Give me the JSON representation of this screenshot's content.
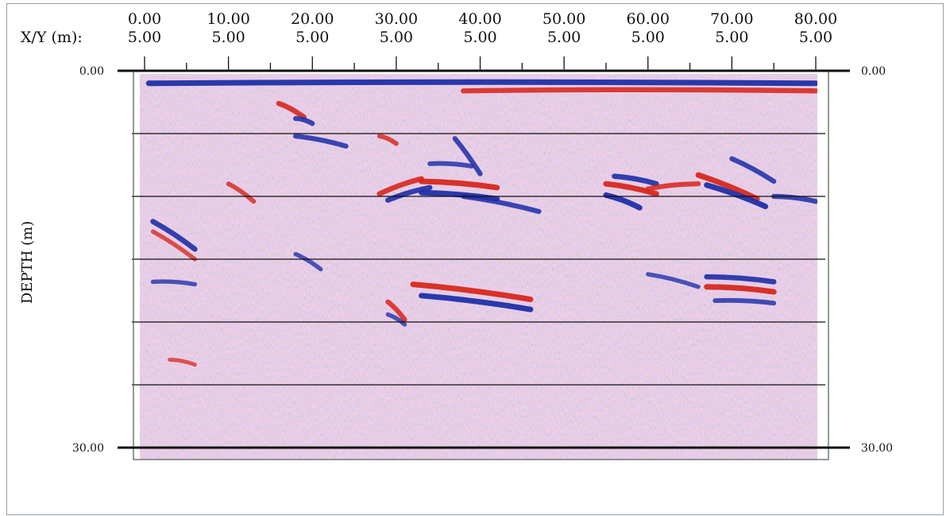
{
  "chart_data": {
    "type": "heatmap",
    "title": "",
    "xlabel": "X/Y (m):",
    "ylabel": "DEPTH (m)",
    "x_ticks": [
      {
        "top": "0.00",
        "bottom": "5.00"
      },
      {
        "top": "10.00",
        "bottom": "5.00"
      },
      {
        "top": "20.00",
        "bottom": "5.00"
      },
      {
        "top": "30.00",
        "bottom": "5.00"
      },
      {
        "top": "40.00",
        "bottom": "5.00"
      },
      {
        "top": "50.00",
        "bottom": "5.00"
      },
      {
        "top": "60.00",
        "bottom": "5.00"
      },
      {
        "top": "70.00",
        "bottom": "5.00"
      },
      {
        "top": "80.00",
        "bottom": "5.00"
      }
    ],
    "xlim": [
      0,
      80
    ],
    "ylim": [
      0,
      30
    ],
    "y_tick_labels": [
      "0.00",
      "30.00"
    ],
    "grid_depths": [
      5,
      10,
      15,
      20,
      25
    ],
    "colors": {
      "positive": "#d7281e",
      "negative": "#1f2fa8",
      "line": "#111111",
      "frame": "#555555"
    },
    "reflectors": [
      {
        "x1": 0.5,
        "d1": 1.0,
        "x2": 80,
        "d2": 1.0,
        "polarity": "negative",
        "strength": 1.0
      },
      {
        "x1": 38,
        "d1": 1.6,
        "x2": 80,
        "d2": 1.6,
        "polarity": "positive",
        "strength": 0.85
      },
      {
        "x1": 16,
        "d1": 2.6,
        "x2": 19,
        "d2": 3.7,
        "polarity": "positive",
        "strength": 0.9
      },
      {
        "x1": 18,
        "d1": 3.8,
        "x2": 20,
        "d2": 4.2,
        "polarity": "negative",
        "strength": 0.8
      },
      {
        "x1": 18,
        "d1": 5.2,
        "x2": 24,
        "d2": 6.0,
        "polarity": "negative",
        "strength": 0.8
      },
      {
        "x1": 28,
        "d1": 9.8,
        "x2": 33,
        "d2": 8.6,
        "polarity": "positive",
        "strength": 0.9
      },
      {
        "x1": 29,
        "d1": 10.3,
        "x2": 34,
        "d2": 9.3,
        "polarity": "negative",
        "strength": 0.9
      },
      {
        "x1": 33,
        "d1": 8.8,
        "x2": 42,
        "d2": 9.3,
        "polarity": "positive",
        "strength": 1.0
      },
      {
        "x1": 33,
        "d1": 9.7,
        "x2": 42,
        "d2": 10.2,
        "polarity": "negative",
        "strength": 1.0
      },
      {
        "x1": 34,
        "d1": 7.4,
        "x2": 39,
        "d2": 7.6,
        "polarity": "negative",
        "strength": 0.7
      },
      {
        "x1": 38,
        "d1": 10.0,
        "x2": 47,
        "d2": 11.2,
        "polarity": "negative",
        "strength": 0.8
      },
      {
        "x1": 37,
        "d1": 5.4,
        "x2": 40,
        "d2": 8.2,
        "polarity": "negative",
        "strength": 0.8
      },
      {
        "x1": 28,
        "d1": 5.2,
        "x2": 30,
        "d2": 5.8,
        "polarity": "positive",
        "strength": 0.7
      },
      {
        "x1": 55,
        "d1": 9.0,
        "x2": 61,
        "d2": 9.8,
        "polarity": "positive",
        "strength": 1.0
      },
      {
        "x1": 55,
        "d1": 9.9,
        "x2": 59,
        "d2": 10.9,
        "polarity": "negative",
        "strength": 1.0
      },
      {
        "x1": 56,
        "d1": 8.4,
        "x2": 61,
        "d2": 9.0,
        "polarity": "negative",
        "strength": 0.9
      },
      {
        "x1": 60,
        "d1": 9.4,
        "x2": 66,
        "d2": 9.0,
        "polarity": "positive",
        "strength": 0.8
      },
      {
        "x1": 66,
        "d1": 8.3,
        "x2": 73,
        "d2": 10.2,
        "polarity": "positive",
        "strength": 1.0
      },
      {
        "x1": 67,
        "d1": 9.1,
        "x2": 74,
        "d2": 10.8,
        "polarity": "negative",
        "strength": 1.0
      },
      {
        "x1": 70,
        "d1": 7.0,
        "x2": 75,
        "d2": 8.8,
        "polarity": "negative",
        "strength": 0.8
      },
      {
        "x1": 75,
        "d1": 10.0,
        "x2": 80,
        "d2": 10.4,
        "polarity": "negative",
        "strength": 0.8
      },
      {
        "x1": 1,
        "d1": 12.0,
        "x2": 6,
        "d2": 14.2,
        "polarity": "negative",
        "strength": 0.9
      },
      {
        "x1": 1,
        "d1": 12.8,
        "x2": 6,
        "d2": 15.0,
        "polarity": "positive",
        "strength": 0.6
      },
      {
        "x1": 10,
        "d1": 9.0,
        "x2": 13,
        "d2": 10.4,
        "polarity": "positive",
        "strength": 0.7
      },
      {
        "x1": 18,
        "d1": 14.6,
        "x2": 21,
        "d2": 15.8,
        "polarity": "negative",
        "strength": 0.6
      },
      {
        "x1": 1,
        "d1": 16.8,
        "x2": 6,
        "d2": 17.0,
        "polarity": "negative",
        "strength": 0.6
      },
      {
        "x1": 32,
        "d1": 17.0,
        "x2": 46,
        "d2": 18.2,
        "polarity": "positive",
        "strength": 1.0
      },
      {
        "x1": 33,
        "d1": 17.9,
        "x2": 46,
        "d2": 19.0,
        "polarity": "negative",
        "strength": 1.0
      },
      {
        "x1": 29,
        "d1": 18.4,
        "x2": 31,
        "d2": 19.8,
        "polarity": "positive",
        "strength": 0.8
      },
      {
        "x1": 29,
        "d1": 19.4,
        "x2": 31,
        "d2": 20.2,
        "polarity": "negative",
        "strength": 0.6
      },
      {
        "x1": 67,
        "d1": 16.4,
        "x2": 75,
        "d2": 16.8,
        "polarity": "negative",
        "strength": 0.9
      },
      {
        "x1": 67,
        "d1": 17.2,
        "x2": 75,
        "d2": 17.6,
        "polarity": "positive",
        "strength": 1.0
      },
      {
        "x1": 68,
        "d1": 18.3,
        "x2": 75,
        "d2": 18.5,
        "polarity": "negative",
        "strength": 0.7
      },
      {
        "x1": 60,
        "d1": 16.2,
        "x2": 66,
        "d2": 17.2,
        "polarity": "negative",
        "strength": 0.6
      },
      {
        "x1": 3,
        "d1": 23.0,
        "x2": 6,
        "d2": 23.4,
        "polarity": "positive",
        "strength": 0.5
      }
    ]
  }
}
